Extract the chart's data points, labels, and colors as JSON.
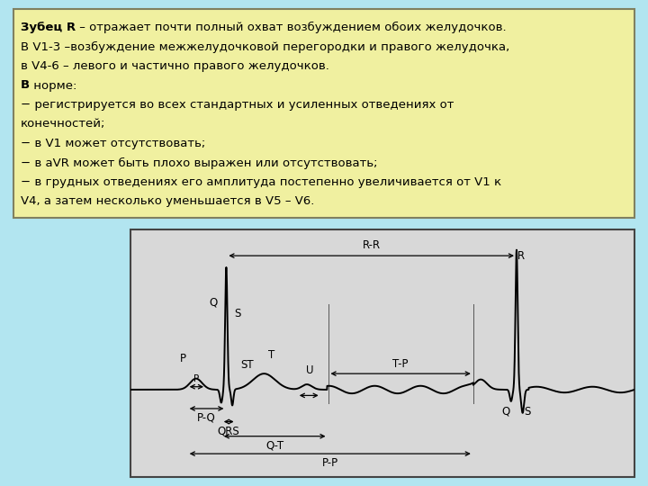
{
  "bg_color": "#b2e5f0",
  "text_box_color": "#f0f0a0",
  "text_box_border": "#808060",
  "ecg_box_color": "#d8d8d8",
  "ecg_line_color": "#000000",
  "fontsize_text": 9.5,
  "fontsize_ecg": 8.5,
  "text_lines": [
    {
      "bold_part": "Зубец R",
      "sep": " – ",
      "rest": "отражает почти полный охват возбуждением обоих желудочков.",
      "bold": true
    },
    {
      "bold_part": "",
      "sep": "",
      "rest": "В V1-3 –возбуждение межжелудочковой перегородки и правого желудочка,",
      "bold": false
    },
    {
      "bold_part": "",
      "sep": "",
      "rest": "в V4-6 – левого и частично правого желудочков.",
      "bold": false
    },
    {
      "bold_part": "В",
      "sep": " ",
      "rest": "норме:",
      "bold": true
    },
    {
      "bold_part": "",
      "sep": "",
      "rest": "− регистрируется во всех стандартных и усиленных отведениях от",
      "bold": false
    },
    {
      "bold_part": "",
      "sep": "",
      "rest": "конечностей;",
      "bold": false
    },
    {
      "bold_part": "",
      "sep": "",
      "rest": "− в V1 может отсутствовать;",
      "bold": false
    },
    {
      "bold_part": "",
      "sep": "",
      "rest": "− в aVR может быть плохо выражен или отсутствовать;",
      "bold": false
    },
    {
      "bold_part": "",
      "sep": "",
      "rest": "− в грудных отведениях его амплитуда постепенно увеличивается от V1 к",
      "bold": false
    },
    {
      "bold_part": "",
      "sep": "",
      "rest": "V4, а затем несколько уменьшается в V5 – V6.",
      "bold": false
    }
  ]
}
